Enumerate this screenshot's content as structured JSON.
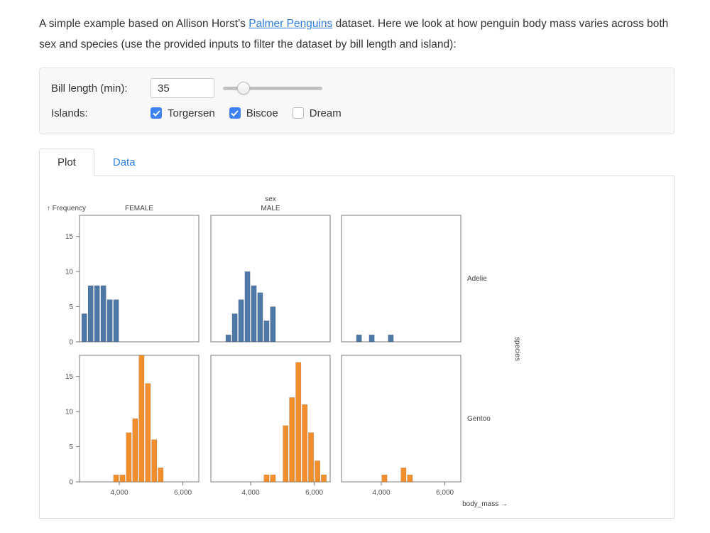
{
  "intro": {
    "text_before": "A simple example based on Allison Horst’s ",
    "link_text": "Palmer Penguins",
    "text_after": " dataset. Here we look at how penguin body mass varies across both sex and species (use the provided inputs to filter the dataset by bill length and island):"
  },
  "filters": {
    "bill_length_label": "Bill length (min):",
    "bill_length_value": "35",
    "slider_percent": 21,
    "islands_label": "Islands:",
    "islands": [
      {
        "label": "Torgersen",
        "checked": true
      },
      {
        "label": "Biscoe",
        "checked": true
      },
      {
        "label": "Dream",
        "checked": false
      }
    ]
  },
  "tabs": [
    {
      "label": "Plot",
      "active": true
    },
    {
      "label": "Data",
      "active": false
    }
  ],
  "chart_data": {
    "type": "bar",
    "subtype": "faceted-histogram",
    "x_axis_label": "body_mass →",
    "y_axis_label": "↑ Frequency",
    "facet_x_title": "sex",
    "facet_y_title": "species",
    "col_order": [
      "FEMALE",
      "MALE",
      "NA"
    ],
    "col_labels": [
      "FEMALE",
      "MALE",
      ""
    ],
    "row_labels": [
      "Adelie",
      "Gentoo"
    ],
    "x_domain": [
      2750,
      6500
    ],
    "y_domain": [
      0,
      18
    ],
    "x_ticks": [
      4000,
      6000
    ],
    "y_ticks": [
      0,
      5,
      10,
      15
    ],
    "bin_width": 200,
    "colors": {
      "Adelie": "#4e79a7",
      "Gentoo": "#f28e2c"
    },
    "cells": [
      {
        "row": "Adelie",
        "col": "FEMALE",
        "bins": [
          [
            2800,
            4
          ],
          [
            3000,
            8
          ],
          [
            3200,
            8
          ],
          [
            3400,
            8
          ],
          [
            3600,
            6
          ],
          [
            3800,
            6
          ]
        ]
      },
      {
        "row": "Adelie",
        "col": "MALE",
        "bins": [
          [
            3200,
            1
          ],
          [
            3400,
            4
          ],
          [
            3600,
            6
          ],
          [
            3800,
            10
          ],
          [
            4000,
            8
          ],
          [
            4200,
            7
          ],
          [
            4400,
            3
          ],
          [
            4600,
            5
          ]
        ]
      },
      {
        "row": "Adelie",
        "col": "NA",
        "bins": [
          [
            3200,
            1
          ],
          [
            3600,
            1
          ],
          [
            4200,
            1
          ]
        ]
      },
      {
        "row": "Gentoo",
        "col": "FEMALE",
        "bins": [
          [
            3800,
            1
          ],
          [
            4000,
            1
          ],
          [
            4200,
            7
          ],
          [
            4400,
            9
          ],
          [
            4600,
            18
          ],
          [
            4800,
            14
          ],
          [
            5000,
            6
          ],
          [
            5200,
            2
          ]
        ]
      },
      {
        "row": "Gentoo",
        "col": "MALE",
        "bins": [
          [
            4400,
            1
          ],
          [
            4600,
            1
          ],
          [
            5000,
            8
          ],
          [
            5200,
            12
          ],
          [
            5400,
            17
          ],
          [
            5600,
            11
          ],
          [
            5800,
            7
          ],
          [
            6000,
            3
          ],
          [
            6200,
            1
          ]
        ]
      },
      {
        "row": "Gentoo",
        "col": "NA",
        "bins": [
          [
            4000,
            1
          ],
          [
            4600,
            2
          ],
          [
            4800,
            1
          ]
        ]
      }
    ]
  }
}
